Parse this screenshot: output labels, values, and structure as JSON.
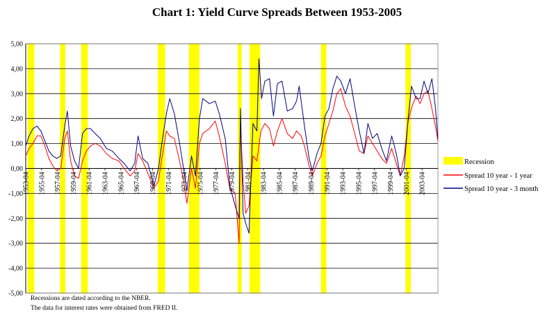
{
  "chart_data": {
    "type": "line",
    "title": "Chart 1:  Yield Curve Spreads Between 1953-2005",
    "xlabel": "",
    "ylabel": "",
    "ylim": [
      -5,
      5
    ],
    "y_ticks": [
      "5,00",
      "4,00",
      "3,00",
      "2,00",
      "1,00",
      "0,00",
      "-1,00",
      "-2,00",
      "-3,00",
      "-4,00",
      "-5,00"
    ],
    "x_range": [
      "1953-04",
      "2005-04"
    ],
    "x_ticks": [
      "1953-04",
      "1955-04",
      "1957-04",
      "1959-04",
      "1961-04",
      "1963-04",
      "1965-04",
      "1967-04",
      "1969-04",
      "1971-04",
      "1973-04",
      "1975-04",
      "1977-04",
      "1979-04",
      "1981-04",
      "1983-04",
      "1985-04",
      "1987-04",
      "1989-04",
      "1991-04",
      "1993-04",
      "1995-04",
      "1997-04",
      "1999-04",
      "2001-04",
      "2003-04"
    ],
    "grid": true,
    "legend_position": "right",
    "recessions": [
      [
        "1953-07",
        "1954-05"
      ],
      [
        "1957-08",
        "1958-04"
      ],
      [
        "1960-04",
        "1961-02"
      ],
      [
        "1969-12",
        "1970-11"
      ],
      [
        "1973-11",
        "1975-03"
      ],
      [
        "1980-01",
        "1980-07"
      ],
      [
        "1981-07",
        "1982-11"
      ],
      [
        "1990-07",
        "1991-03"
      ],
      [
        "2001-03",
        "2001-11"
      ]
    ],
    "series": [
      {
        "name": "Spread 10 year - 1 year",
        "color": "#ff0000",
        "points": [
          [
            "1953-04",
            0.5
          ],
          [
            "1953-09",
            0.8
          ],
          [
            "1954-03",
            1.0
          ],
          [
            "1954-09",
            1.3
          ],
          [
            "1955-03",
            1.3
          ],
          [
            "1955-09",
            0.9
          ],
          [
            "1956-03",
            0.4
          ],
          [
            "1956-09",
            0.1
          ],
          [
            "1957-03",
            -0.1
          ],
          [
            "1957-09",
            0.0
          ],
          [
            "1958-03",
            1.2
          ],
          [
            "1958-07",
            1.5
          ],
          [
            "1958-12",
            0.3
          ],
          [
            "1959-06",
            -0.3
          ],
          [
            "1959-12",
            -0.4
          ],
          [
            "1960-06",
            0.3
          ],
          [
            "1960-12",
            0.7
          ],
          [
            "1961-06",
            0.9
          ],
          [
            "1962-01",
            1.0
          ],
          [
            "1962-09",
            0.9
          ],
          [
            "1963-06",
            0.6
          ],
          [
            "1964-03",
            0.4
          ],
          [
            "1965-01",
            0.3
          ],
          [
            "1965-09",
            0.0
          ],
          [
            "1966-06",
            -0.3
          ],
          [
            "1967-01",
            -0.1
          ],
          [
            "1967-06",
            0.6
          ],
          [
            "1968-01",
            0.3
          ],
          [
            "1968-09",
            -0.2
          ],
          [
            "1969-06",
            -0.8
          ],
          [
            "1970-01",
            -0.5
          ],
          [
            "1970-06",
            0.4
          ],
          [
            "1971-01",
            1.5
          ],
          [
            "1971-06",
            1.3
          ],
          [
            "1972-01",
            1.2
          ],
          [
            "1972-09",
            0.3
          ],
          [
            "1973-03",
            -0.5
          ],
          [
            "1973-08",
            -1.4
          ],
          [
            "1974-03",
            0.0
          ],
          [
            "1974-09",
            -0.8
          ],
          [
            "1975-03",
            1.0
          ],
          [
            "1975-08",
            1.4
          ],
          [
            "1976-06",
            1.6
          ],
          [
            "1977-03",
            1.9
          ],
          [
            "1977-09",
            1.3
          ],
          [
            "1978-06",
            0.2
          ],
          [
            "1979-01",
            -0.8
          ],
          [
            "1979-09",
            -1.0
          ],
          [
            "1980-03",
            -3.0
          ],
          [
            "1980-05",
            1.8
          ],
          [
            "1980-09",
            -0.5
          ],
          [
            "1981-01",
            -1.8
          ],
          [
            "1981-06",
            -1.5
          ],
          [
            "1981-12",
            0.5
          ],
          [
            "1982-06",
            0.3
          ],
          [
            "1982-12",
            1.5
          ],
          [
            "1983-06",
            1.8
          ],
          [
            "1984-01",
            1.6
          ],
          [
            "1984-07",
            0.9
          ],
          [
            "1985-01",
            1.5
          ],
          [
            "1985-08",
            2.0
          ],
          [
            "1986-04",
            1.4
          ],
          [
            "1986-12",
            1.2
          ],
          [
            "1987-06",
            1.5
          ],
          [
            "1988-01",
            1.3
          ],
          [
            "1988-06",
            0.9
          ],
          [
            "1989-01",
            0.1
          ],
          [
            "1989-06",
            -0.3
          ],
          [
            "1990-01",
            0.2
          ],
          [
            "1990-07",
            0.5
          ],
          [
            "1991-01",
            1.3
          ],
          [
            "1991-07",
            1.8
          ],
          [
            "1992-01",
            2.3
          ],
          [
            "1992-07",
            3.0
          ],
          [
            "1993-01",
            3.2
          ],
          [
            "1993-08",
            2.5
          ],
          [
            "1994-03",
            2.1
          ],
          [
            "1994-10",
            1.4
          ],
          [
            "1995-05",
            0.7
          ],
          [
            "1995-12",
            0.6
          ],
          [
            "1996-06",
            1.3
          ],
          [
            "1997-01",
            1.0
          ],
          [
            "1997-08",
            0.7
          ],
          [
            "1998-03",
            0.4
          ],
          [
            "1998-10",
            0.2
          ],
          [
            "1999-06",
            0.8
          ],
          [
            "2000-01",
            0.2
          ],
          [
            "2000-07",
            -0.3
          ],
          [
            "2001-01",
            0.5
          ],
          [
            "2001-07",
            1.9
          ],
          [
            "2002-01",
            2.5
          ],
          [
            "2002-07",
            2.9
          ],
          [
            "2003-01",
            2.6
          ],
          [
            "2003-07",
            3.0
          ],
          [
            "2004-01",
            3.1
          ],
          [
            "2004-07",
            2.4
          ],
          [
            "2005-01",
            1.6
          ],
          [
            "2005-04",
            1.1
          ]
        ]
      },
      {
        "name": "Spread 10 year - 3 month",
        "color": "#000080",
        "points": [
          [
            "1953-04",
            0.9
          ],
          [
            "1953-09",
            1.3
          ],
          [
            "1954-03",
            1.6
          ],
          [
            "1954-09",
            1.7
          ],
          [
            "1955-03",
            1.5
          ],
          [
            "1955-09",
            1.1
          ],
          [
            "1956-03",
            0.7
          ],
          [
            "1956-09",
            0.5
          ],
          [
            "1957-03",
            0.4
          ],
          [
            "1957-09",
            0.5
          ],
          [
            "1958-03",
            1.7
          ],
          [
            "1958-07",
            2.3
          ],
          [
            "1958-12",
            0.9
          ],
          [
            "1959-06",
            0.3
          ],
          [
            "1959-12",
            0.0
          ],
          [
            "1960-06",
            1.4
          ],
          [
            "1960-12",
            1.6
          ],
          [
            "1961-06",
            1.6
          ],
          [
            "1962-01",
            1.4
          ],
          [
            "1962-09",
            1.2
          ],
          [
            "1963-06",
            0.8
          ],
          [
            "1964-03",
            0.7
          ],
          [
            "1965-01",
            0.4
          ],
          [
            "1965-09",
            0.2
          ],
          [
            "1966-06",
            -0.1
          ],
          [
            "1967-01",
            0.2
          ],
          [
            "1967-06",
            1.3
          ],
          [
            "1968-01",
            0.4
          ],
          [
            "1968-09",
            0.2
          ],
          [
            "1969-06",
            -0.7
          ],
          [
            "1970-01",
            0.0
          ],
          [
            "1970-06",
            1.0
          ],
          [
            "1971-01",
            2.2
          ],
          [
            "1971-06",
            2.8
          ],
          [
            "1972-01",
            2.2
          ],
          [
            "1972-09",
            1.0
          ],
          [
            "1973-03",
            0.0
          ],
          [
            "1973-08",
            -0.9
          ],
          [
            "1974-03",
            0.5
          ],
          [
            "1974-09",
            -0.3
          ],
          [
            "1975-03",
            2.0
          ],
          [
            "1975-08",
            2.8
          ],
          [
            "1976-06",
            2.6
          ],
          [
            "1977-03",
            2.7
          ],
          [
            "1977-09",
            2.2
          ],
          [
            "1978-06",
            1.2
          ],
          [
            "1979-01",
            -0.7
          ],
          [
            "1979-09",
            -1.5
          ],
          [
            "1980-03",
            -2.0
          ],
          [
            "1980-05",
            2.4
          ],
          [
            "1980-09",
            -1.8
          ],
          [
            "1981-01",
            -2.2
          ],
          [
            "1981-06",
            -2.6
          ],
          [
            "1981-12",
            1.8
          ],
          [
            "1982-06",
            1.5
          ],
          [
            "1982-09",
            4.4
          ],
          [
            "1983-01",
            2.8
          ],
          [
            "1983-06",
            3.5
          ],
          [
            "1984-01",
            3.6
          ],
          [
            "1984-07",
            2.1
          ],
          [
            "1985-01",
            3.4
          ],
          [
            "1985-08",
            3.5
          ],
          [
            "1986-04",
            2.3
          ],
          [
            "1986-12",
            2.4
          ],
          [
            "1987-06",
            2.7
          ],
          [
            "1987-10",
            3.3
          ],
          [
            "1988-06",
            1.7
          ],
          [
            "1989-01",
            0.4
          ],
          [
            "1989-06",
            -0.1
          ],
          [
            "1990-01",
            0.6
          ],
          [
            "1990-07",
            1.0
          ],
          [
            "1991-01",
            2.1
          ],
          [
            "1991-07",
            2.4
          ],
          [
            "1992-01",
            3.2
          ],
          [
            "1992-07",
            3.7
          ],
          [
            "1993-01",
            3.5
          ],
          [
            "1993-08",
            3.0
          ],
          [
            "1994-03",
            3.6
          ],
          [
            "1994-10",
            2.5
          ],
          [
            "1995-05",
            1.5
          ],
          [
            "1995-12",
            0.6
          ],
          [
            "1996-06",
            1.8
          ],
          [
            "1997-01",
            1.2
          ],
          [
            "1997-08",
            1.4
          ],
          [
            "1998-03",
            0.8
          ],
          [
            "1998-10",
            0.3
          ],
          [
            "1999-06",
            1.3
          ],
          [
            "2000-01",
            0.6
          ],
          [
            "2000-07",
            -0.3
          ],
          [
            "2001-01",
            0.0
          ],
          [
            "2001-07",
            2.0
          ],
          [
            "2001-12",
            3.3
          ],
          [
            "2002-07",
            2.8
          ],
          [
            "2003-01",
            2.8
          ],
          [
            "2003-07",
            3.5
          ],
          [
            "2004-01",
            3.0
          ],
          [
            "2004-07",
            3.6
          ],
          [
            "2004-12",
            2.5
          ],
          [
            "2005-04",
            1.2
          ]
        ]
      }
    ],
    "legend": [
      {
        "label": "Recession",
        "swatch": "box",
        "color": "#ffff00"
      },
      {
        "label": "Spread 10 year - 1 year",
        "swatch": "line",
        "color": "#ff0000"
      },
      {
        "label": "Spread 10 year - 3 month",
        "swatch": "line",
        "color": "#000080"
      }
    ]
  },
  "notes": {
    "line1": "Recessions are dated according to the NBER.",
    "line2": "The data for interest rates were obtained from FRED II."
  }
}
